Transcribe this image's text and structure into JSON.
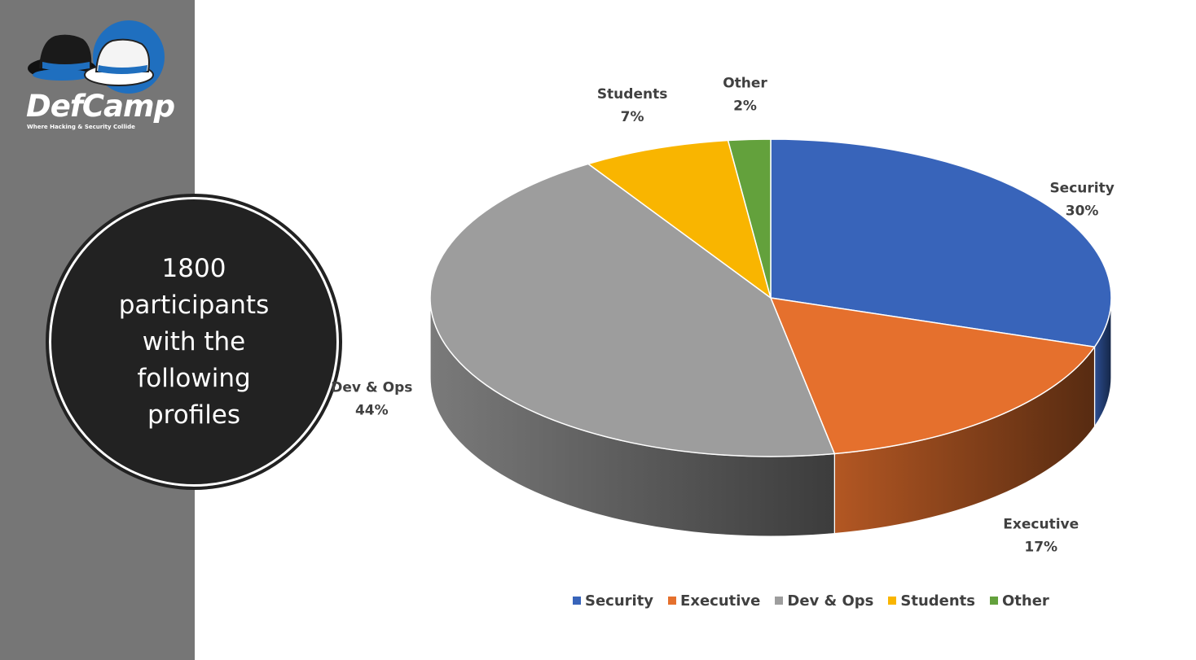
{
  "brand": {
    "name": "DefCamp",
    "tagline": "Where Hacking & Security Collide"
  },
  "badge": {
    "lines": [
      "1800",
      "participants",
      "with the",
      "following",
      "profiles"
    ]
  },
  "colors": {
    "sidebar": "#767676",
    "badge": "#222222",
    "logo_blue": "#1f6fbf"
  },
  "chart_data": {
    "type": "pie",
    "style": "3d",
    "title": "",
    "legend_position": "bottom",
    "series": [
      {
        "name": "Security",
        "value": 30,
        "label": "30%",
        "color": "#3864ba"
      },
      {
        "name": "Executive",
        "value": 17,
        "label": "17%",
        "color": "#e5702d"
      },
      {
        "name": "Dev & Ops",
        "value": 44,
        "label": "44%",
        "color": "#9d9d9d"
      },
      {
        "name": "Students",
        "value": 7,
        "label": "7%",
        "color": "#f9b500"
      },
      {
        "name": "Other",
        "value": 2,
        "label": "2%",
        "color": "#63a13c"
      }
    ]
  }
}
